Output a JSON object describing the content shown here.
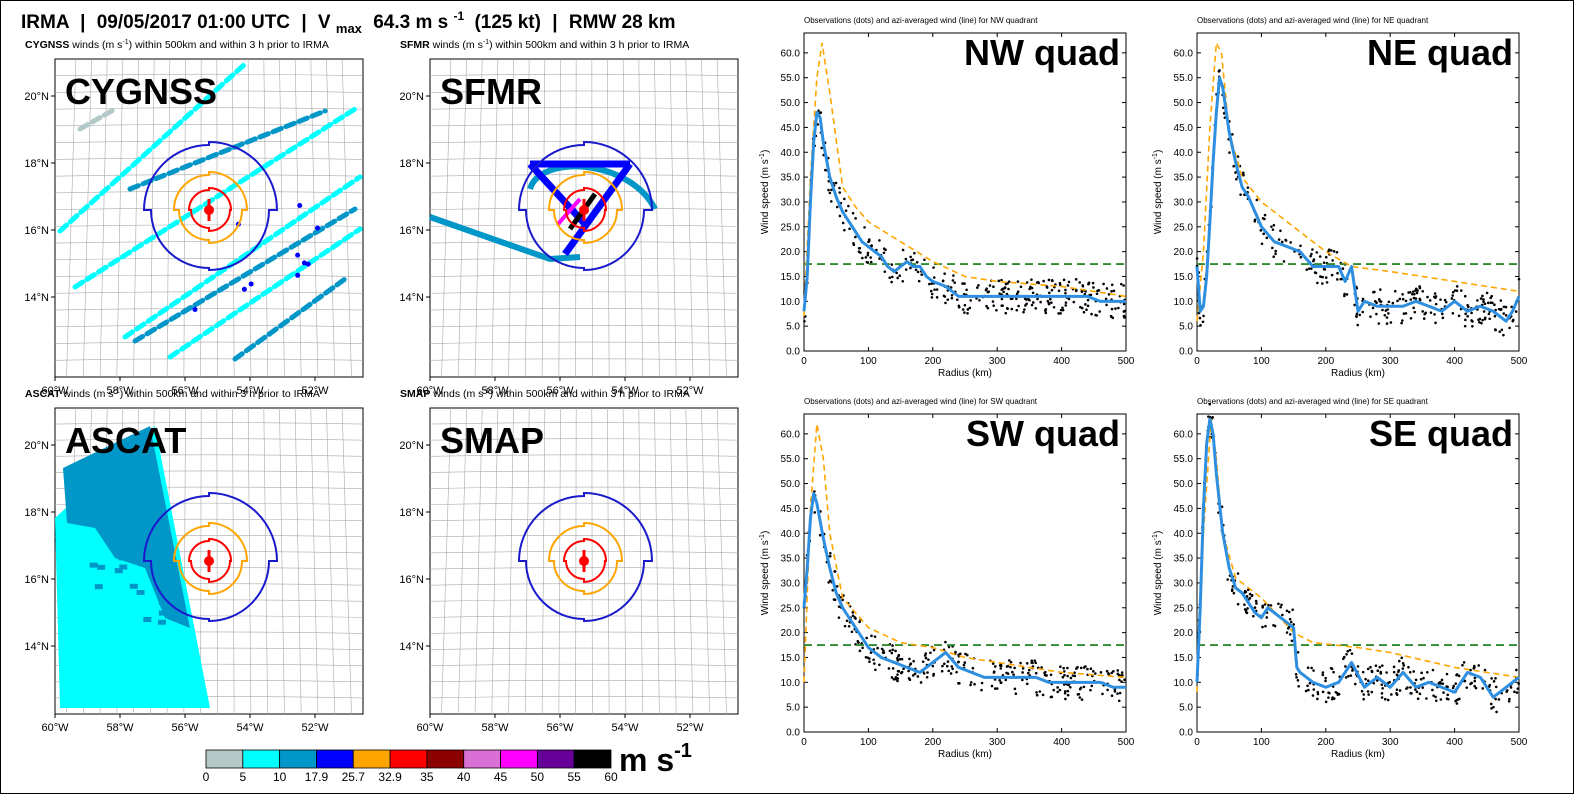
{
  "header": {
    "storm": "IRMA",
    "sep1": "|",
    "datetime": "09/05/2017 01:00 UTC",
    "sep2": "|",
    "vmax_sym": "V",
    "vmax_sub": "max",
    "vmax_val": "64.3 m s",
    "vmax_exp": "-1",
    "vmax_kt": "(125 kt)",
    "sep3": "|",
    "rmw": "RMW 28 km"
  },
  "maps": [
    {
      "id": "cygnss",
      "sensor": "CYGNSS",
      "caption_rest": " winds (m s",
      "caption_tail": ") within 500km and within 3 h prior to IRMA",
      "label": "CYGNSS",
      "show_swaths": true
    },
    {
      "id": "sfmr",
      "sensor": "SFMR",
      "caption_rest": " winds (m s",
      "caption_tail": ") within 500km and within 3 h prior to IRMA",
      "label": "SFMR",
      "show_track": true
    },
    {
      "id": "ascat",
      "sensor": "ASCAT",
      "caption_rest": " winds (m s",
      "caption_tail": ") within 500km and within 3 h prior to IRMA",
      "label": "ASCAT",
      "show_ascat": true
    },
    {
      "id": "smap",
      "sensor": "SMAP",
      "caption_rest": " winds (m s",
      "caption_tail": ") within 500km and within 3 h prior to IRMA",
      "label": "SMAP"
    }
  ],
  "map_axes": {
    "lon_labels": [
      "60°W",
      "58°W",
      "56°W",
      "54°W",
      "52°W"
    ],
    "lat_labels": [
      "20°N",
      "18°N",
      "16°N",
      "14°N"
    ]
  },
  "colorbar": {
    "ticks": [
      "0",
      "5",
      "10",
      "17.9",
      "25.7",
      "32.9",
      "35",
      "40",
      "45",
      "50",
      "55",
      "60"
    ],
    "colors": [
      "#b4c8c8",
      "#00ffff",
      "#0096c8",
      "#0000ff",
      "#ffa500",
      "#ff0000",
      "#8b0000",
      "#da70d6",
      "#ff00ff",
      "#660099",
      "#000000"
    ],
    "unit_main": "m s",
    "unit_exp": "-1"
  },
  "colors": {
    "obs_dot": "#000000",
    "azi_line": "#2e8fe0",
    "envelope": "#ffa500",
    "threshold": "#2e8b2e",
    "ring_outer": "#1a1acc",
    "ring_mid": "#ffa500",
    "ring_inner": "#ff0000"
  },
  "chart_data": [
    {
      "type": "line",
      "quadrant": "NW",
      "title": "Observations (dots) and azi-averaged wind (line) for NW quadrant",
      "label": "NW quad",
      "xlabel": "Radius (km)",
      "ylabel": "Wind speed (m s",
      "ylabel_exp": "-1",
      "ylabel_close": ")",
      "xlim": [
        0,
        500
      ],
      "ylim": [
        0,
        64
      ],
      "xticks": [
        "0",
        "100",
        "200",
        "300",
        "400",
        "500"
      ],
      "yticks": [
        "0.0",
        "5.0",
        "10.0",
        "15.0",
        "20.0",
        "25.0",
        "30.0",
        "35.0",
        "40.0",
        "45.0",
        "50.0",
        "55.0",
        "60.0"
      ],
      "threshold": 17.5,
      "series": [
        {
          "role": "azi",
          "x": [
            0,
            5,
            10,
            15,
            20,
            25,
            30,
            40,
            50,
            60,
            70,
            80,
            90,
            100,
            110,
            120,
            130,
            140,
            150,
            160,
            170,
            180,
            190,
            200,
            220,
            240,
            260,
            280,
            300,
            320,
            340,
            360,
            380,
            400,
            420,
            440,
            460,
            480,
            500
          ],
          "y": [
            8,
            15,
            30,
            42,
            48,
            47,
            42,
            35,
            31,
            28,
            26,
            24,
            22,
            21,
            20,
            19,
            17,
            16,
            17,
            18,
            17,
            17,
            15,
            14,
            13,
            11,
            11,
            11,
            11,
            11,
            11,
            11,
            11,
            11,
            11,
            11,
            10,
            10,
            10
          ]
        },
        {
          "role": "envelope",
          "x": [
            0,
            10,
            20,
            28,
            40,
            60,
            80,
            100,
            150,
            200,
            250,
            300,
            400,
            500
          ],
          "y": [
            7,
            35,
            55,
            62,
            52,
            33,
            29,
            26,
            22,
            18,
            15,
            14,
            13,
            11
          ]
        }
      ]
    },
    {
      "type": "line",
      "quadrant": "NE",
      "title": "Observations (dots) and azi-averaged wind (line) for NE quadrant",
      "label": "NE quad",
      "xlabel": "Radius (km)",
      "ylabel": "Wind speed (m s",
      "ylabel_exp": "-1",
      "ylabel_close": ")",
      "xlim": [
        0,
        500
      ],
      "ylim": [
        0,
        64
      ],
      "xticks": [
        "0",
        "100",
        "200",
        "300",
        "400",
        "500"
      ],
      "yticks": [
        "0.0",
        "5.0",
        "10.0",
        "15.0",
        "20.0",
        "25.0",
        "30.0",
        "35.0",
        "40.0",
        "45.0",
        "50.0",
        "55.0",
        "60.0"
      ],
      "threshold": 17.5,
      "series": [
        {
          "role": "azi",
          "x": [
            0,
            5,
            10,
            15,
            20,
            25,
            30,
            35,
            40,
            50,
            60,
            70,
            80,
            90,
            100,
            120,
            140,
            160,
            180,
            200,
            220,
            230,
            240,
            250,
            260,
            280,
            300,
            320,
            340,
            360,
            380,
            400,
            420,
            440,
            460,
            480,
            490,
            500
          ],
          "y": [
            17,
            8,
            9,
            15,
            26,
            38,
            48,
            55,
            53,
            44,
            38,
            33,
            31,
            28,
            25,
            22,
            21,
            20,
            17,
            17,
            17,
            14,
            17,
            8,
            10,
            9,
            9,
            9,
            10,
            9,
            8,
            10,
            8,
            9,
            8,
            6,
            8,
            11
          ]
        },
        {
          "role": "envelope",
          "x": [
            0,
            10,
            20,
            30,
            38,
            50,
            70,
            100,
            150,
            200,
            240,
            300,
            400,
            500
          ],
          "y": [
            6,
            20,
            45,
            62,
            60,
            44,
            35,
            30,
            25,
            20,
            17,
            16,
            14,
            12
          ]
        }
      ]
    },
    {
      "type": "line",
      "quadrant": "SW",
      "title": "Observations (dots) and azi-averaged wind (line) for SW quadrant",
      "label": "SW quad",
      "xlabel": "Radius (km)",
      "ylabel": "Wind speed (m s",
      "ylabel_exp": "-1",
      "ylabel_close": ")",
      "xlim": [
        0,
        500
      ],
      "ylim": [
        0,
        64
      ],
      "xticks": [
        "0",
        "100",
        "200",
        "300",
        "400",
        "500"
      ],
      "yticks": [
        "0.0",
        "5.0",
        "10.0",
        "15.0",
        "20.0",
        "25.0",
        "30.0",
        "35.0",
        "40.0",
        "45.0",
        "50.0",
        "55.0",
        "60.0"
      ],
      "threshold": 17.5,
      "series": [
        {
          "role": "azi",
          "x": [
            0,
            5,
            10,
            15,
            20,
            30,
            40,
            50,
            60,
            70,
            80,
            90,
            100,
            110,
            120,
            140,
            160,
            180,
            200,
            210,
            220,
            240,
            260,
            280,
            300,
            320,
            340,
            360,
            380,
            400,
            420,
            440,
            460,
            480,
            500
          ],
          "y": [
            25,
            33,
            43,
            48,
            46,
            39,
            33,
            28,
            25,
            23,
            21,
            19,
            17,
            16,
            15,
            14,
            13,
            12,
            14,
            15,
            16,
            13,
            12,
            11,
            11,
            11,
            11,
            11,
            10,
            10,
            10,
            10,
            10,
            9,
            9
          ]
        },
        {
          "role": "envelope",
          "x": [
            0,
            10,
            20,
            30,
            40,
            60,
            80,
            100,
            150,
            200,
            250,
            300,
            400,
            500
          ],
          "y": [
            10,
            45,
            62,
            55,
            40,
            27,
            24,
            21,
            18,
            17,
            15,
            14,
            12,
            11
          ]
        }
      ]
    },
    {
      "type": "line",
      "quadrant": "SE",
      "title": "Observations (dots) and azi-averaged wind (line) for SE quadrant",
      "label": "SE quad",
      "xlabel": "Radius (km)",
      "ylabel": "Wind speed (m s",
      "ylabel_exp": "-1",
      "ylabel_close": ")",
      "xlim": [
        0,
        500
      ],
      "ylim": [
        0,
        64
      ],
      "xticks": [
        "0",
        "100",
        "200",
        "300",
        "400",
        "500"
      ],
      "yticks": [
        "0.0",
        "5.0",
        "10.0",
        "15.0",
        "20.0",
        "25.0",
        "30.0",
        "35.0",
        "40.0",
        "45.0",
        "50.0",
        "55.0",
        "60.0"
      ],
      "threshold": 17.5,
      "series": [
        {
          "role": "azi",
          "x": [
            0,
            5,
            10,
            15,
            20,
            25,
            30,
            40,
            50,
            60,
            70,
            80,
            90,
            100,
            110,
            120,
            130,
            140,
            150,
            155,
            160,
            170,
            180,
            200,
            220,
            240,
            260,
            280,
            300,
            320,
            340,
            360,
            380,
            400,
            420,
            440,
            460,
            480,
            500
          ],
          "y": [
            10,
            25,
            45,
            58,
            63,
            60,
            52,
            40,
            33,
            29,
            28,
            26,
            24,
            23,
            25,
            24,
            23,
            22,
            21,
            13,
            12,
            11,
            10,
            9,
            10,
            14,
            9,
            11,
            9,
            12,
            9,
            10,
            9,
            8,
            12,
            11,
            7,
            9,
            11
          ]
        },
        {
          "role": "envelope",
          "x": [
            0,
            10,
            22,
            30,
            40,
            60,
            80,
            100,
            150,
            180,
            250,
            300,
            400,
            500
          ],
          "y": [
            8,
            40,
            63,
            55,
            40,
            31,
            29,
            27,
            20,
            18,
            17,
            16,
            13,
            11
          ]
        }
      ]
    }
  ]
}
